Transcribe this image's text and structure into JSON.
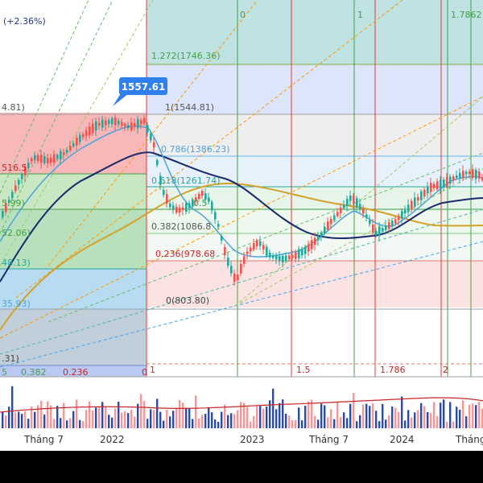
{
  "header": {
    "change_pct": "(+2.36%)"
  },
  "price_callout": {
    "label": "1557.61"
  },
  "fib_retracement": {
    "labels": [
      "1.272(1746.36)",
      "1(1544.81)",
      "0.786(1386.23)",
      "0.618(1261.74)",
      "0.5",
      "0.382(1086.8",
      "0.236(978.68",
      "0(803.80)"
    ]
  },
  "fib_left_cut_labels": [
    "4.81)",
    "516.5",
    "5.99)",
    "52.06)",
    "48.13)",
    "35.93)",
    ".31)"
  ],
  "fib_time_zones": {
    "top_labels": [
      "0",
      "1",
      "1.7862"
    ],
    "bottom_labels": [
      "1",
      "1.5",
      "1.786",
      "2"
    ]
  },
  "left_bottom_labels": [
    "5",
    "0.382",
    "0.236",
    "0"
  ],
  "x_axis": {
    "labels": [
      "Tháng 7",
      "2022",
      "2023",
      "Tháng 7",
      "2024",
      "Tháng"
    ]
  },
  "colors": {
    "up": "#26a69a",
    "down": "#ef5350",
    "volume_up": "#2e4c9a",
    "volume_down": "#ef9a9a",
    "sma_fast": "#1a2a6c",
    "sma_slow": "#d4a12a",
    "ema": "#4fa3d9",
    "callout": "#2f80ed",
    "time_zone_green": "#43a047",
    "time_zone_red": "#e53935"
  }
}
